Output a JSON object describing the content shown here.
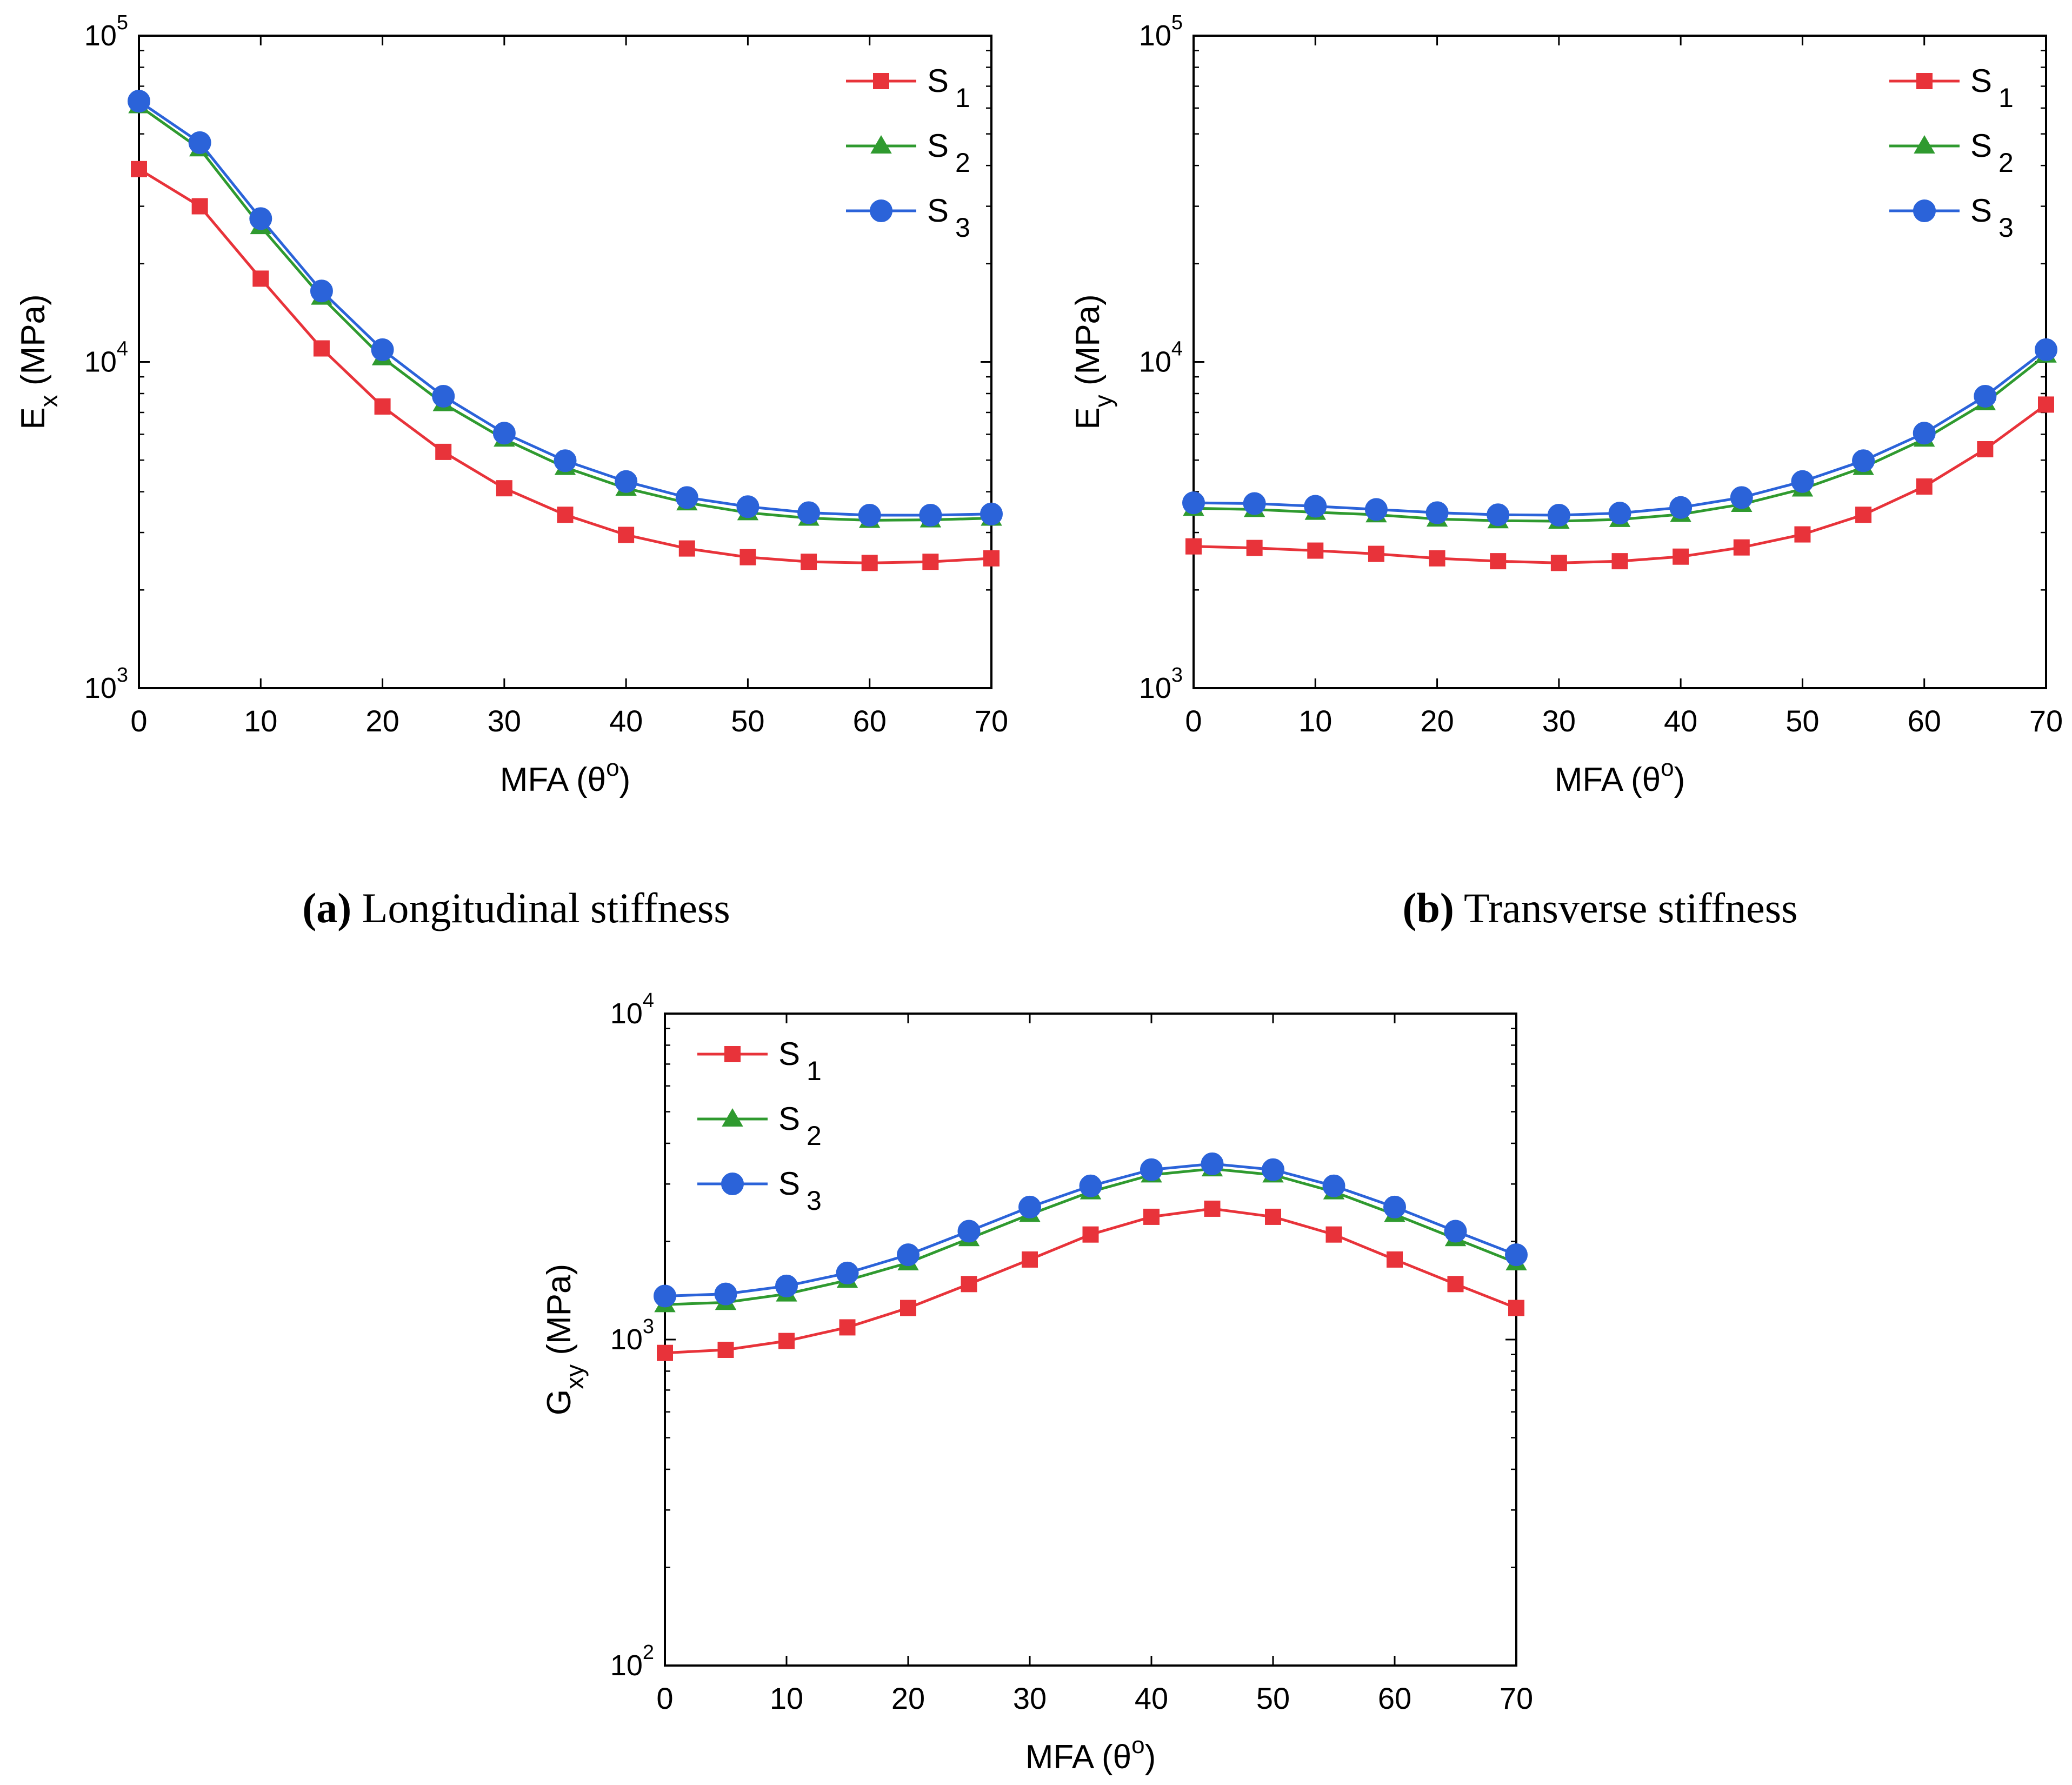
{
  "colors": {
    "S1": "#e8333a",
    "S2": "#2f9a2f",
    "S3": "#2b63d9",
    "axis": "#000000"
  },
  "legend_labels": {
    "s1_main": "S",
    "s1_sub": "1",
    "s2_main": "S",
    "s2_sub": "2",
    "s3_main": "S",
    "s3_sub": "3"
  },
  "captions": {
    "a_letter": "(a)",
    "a_text": "Longitudinal stiffness",
    "b_letter": "(b)",
    "b_text": "Transverse stiffness"
  },
  "chart_data": [
    {
      "id": "a",
      "type": "line",
      "yscale": "log",
      "title": "",
      "xlabel_main": "MFA (θ",
      "xlabel_sup": "o",
      "xlabel_end": ")",
      "ylabel_main": "E",
      "ylabel_sub": "x",
      "ylabel_end": " (MPa)",
      "xlim": [
        0,
        70
      ],
      "ylim": [
        1000,
        100000
      ],
      "xticks": [
        "0",
        "10",
        "20",
        "30",
        "40",
        "50",
        "60",
        "70"
      ],
      "yticks": [
        {
          "base": "10",
          "exp": "3"
        },
        {
          "base": "10",
          "exp": "4"
        },
        {
          "base": "10",
          "exp": "5"
        }
      ],
      "legend_position": "top-right",
      "x": [
        0,
        5,
        10,
        15,
        20,
        25,
        30,
        35,
        40,
        45,
        50,
        55,
        60,
        65,
        70
      ],
      "series": [
        {
          "name": "S1",
          "marker": "square",
          "values": [
            39000,
            30000,
            18000,
            11000,
            7300,
            5300,
            4100,
            3400,
            2950,
            2680,
            2520,
            2440,
            2420,
            2440,
            2500
          ]
        },
        {
          "name": "S2",
          "marker": "triangle",
          "values": [
            61000,
            45000,
            26000,
            15800,
            10300,
            7450,
            5800,
            4750,
            4100,
            3700,
            3450,
            3320,
            3270,
            3280,
            3320
          ]
        },
        {
          "name": "S3",
          "marker": "circle",
          "values": [
            63000,
            47000,
            27500,
            16500,
            10900,
            7850,
            6050,
            4980,
            4300,
            3840,
            3600,
            3450,
            3390,
            3390,
            3420
          ]
        }
      ]
    },
    {
      "id": "b",
      "type": "line",
      "yscale": "log",
      "title": "",
      "xlabel_main": "MFA (θ",
      "xlabel_sup": "o",
      "xlabel_end": ")",
      "ylabel_main": "E",
      "ylabel_sub": "y",
      "ylabel_end": " (MPa)",
      "xlim": [
        0,
        70
      ],
      "ylim": [
        1000,
        100000
      ],
      "xticks": [
        "0",
        "10",
        "20",
        "30",
        "40",
        "50",
        "60",
        "70"
      ],
      "yticks": [
        {
          "base": "10",
          "exp": "3"
        },
        {
          "base": "10",
          "exp": "4"
        },
        {
          "base": "10",
          "exp": "5"
        }
      ],
      "legend_position": "top-right",
      "x": [
        0,
        5,
        10,
        15,
        20,
        25,
        30,
        35,
        40,
        45,
        50,
        55,
        60,
        65,
        70
      ],
      "series": [
        {
          "name": "S1",
          "marker": "square",
          "values": [
            2720,
            2690,
            2640,
            2580,
            2500,
            2450,
            2420,
            2450,
            2530,
            2700,
            2960,
            3400,
            4150,
            5400,
            7400
          ]
        },
        {
          "name": "S2",
          "marker": "triangle",
          "values": [
            3560,
            3530,
            3460,
            3400,
            3300,
            3260,
            3250,
            3290,
            3410,
            3660,
            4080,
            4750,
            5800,
            7500,
            10500
          ]
        },
        {
          "name": "S3",
          "marker": "circle",
          "values": [
            3700,
            3680,
            3610,
            3530,
            3450,
            3400,
            3390,
            3440,
            3580,
            3840,
            4300,
            4980,
            6050,
            7850,
            10900
          ]
        }
      ]
    },
    {
      "id": "c",
      "type": "line",
      "yscale": "log",
      "title": "",
      "xlabel_main": "MFA (θ",
      "xlabel_sup": "o",
      "xlabel_end": ")",
      "ylabel_main": "G",
      "ylabel_sub": "xy",
      "ylabel_end": " (MPa)",
      "xlim": [
        0,
        70
      ],
      "ylim": [
        100,
        10000
      ],
      "xticks": [
        "0",
        "10",
        "20",
        "30",
        "40",
        "50",
        "60",
        "70"
      ],
      "yticks": [
        {
          "base": "10",
          "exp": "2"
        },
        {
          "base": "10",
          "exp": "3"
        },
        {
          "base": "10",
          "exp": "4"
        }
      ],
      "legend_position": "top-left",
      "x": [
        0,
        5,
        10,
        15,
        20,
        25,
        30,
        35,
        40,
        45,
        50,
        55,
        60,
        65,
        70
      ],
      "series": [
        {
          "name": "S1",
          "marker": "square",
          "values": [
            910,
            930,
            990,
            1090,
            1250,
            1480,
            1760,
            2100,
            2380,
            2520,
            2380,
            2100,
            1760,
            1480,
            1250
          ]
        },
        {
          "name": "S2",
          "marker": "triangle",
          "values": [
            1280,
            1300,
            1380,
            1520,
            1720,
            2040,
            2420,
            2840,
            3200,
            3340,
            3200,
            2840,
            2420,
            2040,
            1720
          ]
        },
        {
          "name": "S3",
          "marker": "circle",
          "values": [
            1360,
            1380,
            1460,
            1600,
            1820,
            2150,
            2550,
            2960,
            3320,
            3460,
            3320,
            2960,
            2550,
            2150,
            1820
          ]
        }
      ]
    }
  ]
}
